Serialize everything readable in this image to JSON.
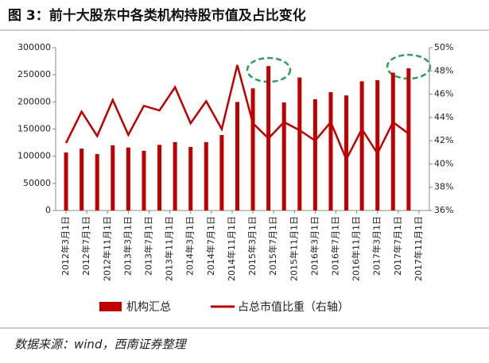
{
  "chart_data": {
    "type": "bar_line",
    "title": "图 3：前十大股东中各类机构持股市值及占比变化",
    "source": "数据来源：wind，西南证券整理",
    "x": [
      "2012-03",
      "2012-06",
      "2012-09",
      "2012-12",
      "2013-03",
      "2013-06",
      "2013-09",
      "2013-12",
      "2014-03",
      "2014-06",
      "2014-09",
      "2014-12",
      "2015-03",
      "2015-06",
      "2015-09",
      "2015-12",
      "2016-03",
      "2016-06",
      "2016-09",
      "2016-12",
      "2017-03",
      "2017-06",
      "2017-09"
    ],
    "xlim": [
      "2012-01",
      "2018-01"
    ],
    "xticks": [
      {
        "value": "2012-03",
        "label": "2012年3月1日"
      },
      {
        "value": "2012-07",
        "label": "2012年7月1日"
      },
      {
        "value": "2012-11",
        "label": "2012年11月1日"
      },
      {
        "value": "2013-03",
        "label": "2013年3月1日"
      },
      {
        "value": "2013-07",
        "label": "2013年7月1日"
      },
      {
        "value": "2013-11",
        "label": "2013年11月1日"
      },
      {
        "value": "2014-03",
        "label": "2014年3月1日"
      },
      {
        "value": "2014-07",
        "label": "2014年7月1日"
      },
      {
        "value": "2014-11",
        "label": "2014年11月1日"
      },
      {
        "value": "2015-03",
        "label": "2015年3月1日"
      },
      {
        "value": "2015-07",
        "label": "2015年7月1日"
      },
      {
        "value": "2015-11",
        "label": "2015年11月1日"
      },
      {
        "value": "2016-03",
        "label": "2016年3月1日"
      },
      {
        "value": "2016-07",
        "label": "2016年7月1日"
      },
      {
        "value": "2016-11",
        "label": "2016年11月1日"
      },
      {
        "value": "2017-03",
        "label": "2017年3月1日"
      },
      {
        "value": "2017-07",
        "label": "2017年7月1日"
      },
      {
        "value": "2017-11",
        "label": "2017年11月1日"
      }
    ],
    "ylim": [
      0,
      300000
    ],
    "yticks": [
      0,
      50000,
      100000,
      150000,
      200000,
      250000,
      300000
    ],
    "y2lim": [
      36,
      50
    ],
    "y2ticks": [
      {
        "value": 36,
        "label": "36%"
      },
      {
        "value": 38,
        "label": "38%"
      },
      {
        "value": 40,
        "label": "40%"
      },
      {
        "value": 42,
        "label": "42%"
      },
      {
        "value": 44,
        "label": "44%"
      },
      {
        "value": 46,
        "label": "46%"
      },
      {
        "value": 48,
        "label": "48%"
      },
      {
        "value": 50,
        "label": "50%"
      }
    ],
    "series": [
      {
        "name": "机构汇总",
        "color": "#c00000",
        "kind": "bar",
        "values": [
          107000,
          114000,
          104000,
          120000,
          116000,
          110000,
          121000,
          126000,
          117000,
          126000,
          139000,
          200000,
          225000,
          266000,
          199000,
          245000,
          205000,
          218000,
          212000,
          238000,
          240000,
          254000,
          262000
        ]
      },
      {
        "name": "占总市值比重（右轴）",
        "color": "#c00000",
        "kind": "line",
        "axis": "y2",
        "values": [
          41.8,
          44.5,
          42.4,
          45.5,
          42.5,
          45.0,
          44.6,
          46.6,
          43.5,
          45.4,
          43.0,
          48.5,
          43.5,
          42.2,
          43.6,
          42.9,
          42.0,
          43.6,
          40.4,
          43.0,
          40.9,
          43.6,
          42.6
        ]
      }
    ]
  }
}
